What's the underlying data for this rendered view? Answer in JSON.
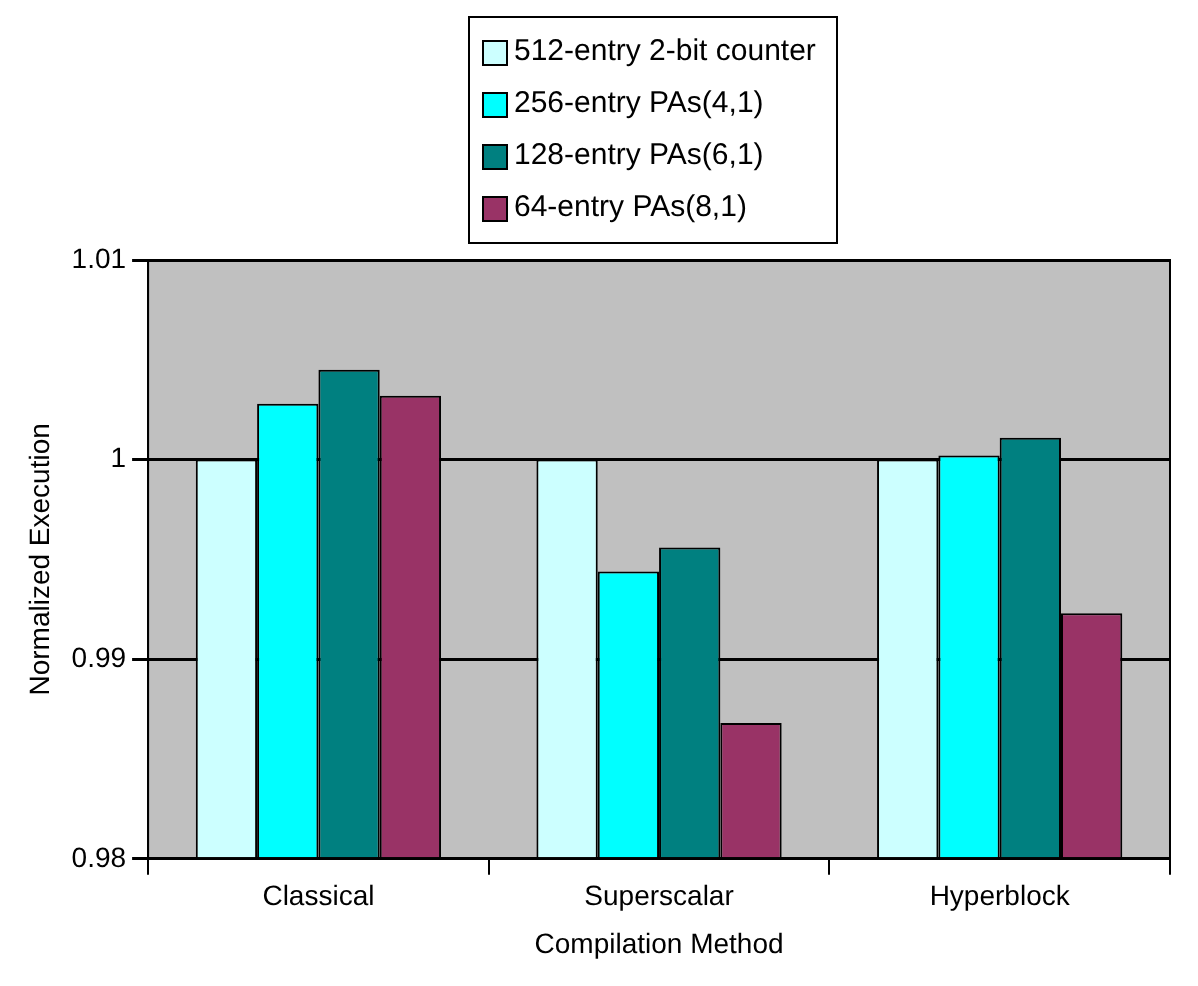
{
  "chart_data": {
    "type": "bar",
    "xlabel": "Compilation Method",
    "ylabel": "Normalized Execution",
    "categories": [
      "Classical",
      "Superscalar",
      "Hyperblock"
    ],
    "series": [
      {
        "name": "512-entry 2-bit counter",
        "color": "#ccffff",
        "values": [
          1.0,
          1.0,
          1.0
        ]
      },
      {
        "name": "256-entry PAs(4,1)",
        "color": "#00ffff",
        "values": [
          1.0028,
          0.9944,
          1.0002
        ]
      },
      {
        "name": "128-entry PAs(6,1)",
        "color": "#008080",
        "values": [
          1.0045,
          0.9956,
          1.0011
        ]
      },
      {
        "name": "64-entry PAs(8,1)",
        "color": "#993366",
        "values": [
          1.0032,
          0.9868,
          0.9923
        ]
      }
    ],
    "ylim": [
      0.98,
      1.01
    ],
    "yticks": [
      0.98,
      0.99,
      1,
      1.01
    ],
    "grid": "y",
    "legend": "top"
  }
}
